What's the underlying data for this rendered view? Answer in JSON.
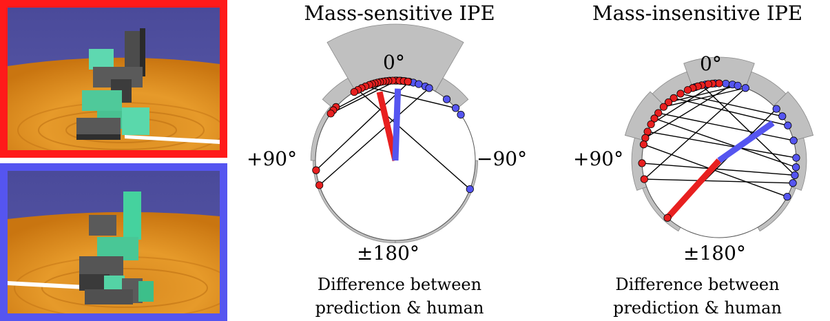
{
  "scenes": [
    {
      "name": "top-scene",
      "frame_color": "#ff1a1a"
    },
    {
      "name": "bottom-scene",
      "frame_color": "#5555f0"
    }
  ],
  "chart_data": [
    {
      "type": "polar_scatter",
      "title": "Mass-sensitive IPE",
      "angle_labels": {
        "top": "0°",
        "left": "+90°",
        "right": "−90°",
        "bottom": "±180°"
      },
      "caption_line1": "Difference between",
      "caption_line2": "prediction & human",
      "angle_convention": "degrees, 0 at top, positive to the left (counter-clockwise)",
      "histogram_sectors": [
        {
          "from": -30,
          "to": 30,
          "height": 1.0
        },
        {
          "from": 30,
          "to": 50,
          "height": 0.25
        },
        {
          "from": -50,
          "to": -30,
          "height": 0.25
        },
        {
          "from": 50,
          "to": 90,
          "height": 0.06
        },
        {
          "from": 90,
          "to": 180,
          "height": 0.02
        },
        {
          "from": -180,
          "to": -90,
          "height": 0.02
        }
      ],
      "mean_vectors": [
        {
          "series": "red",
          "angle": 13,
          "length": 0.88,
          "color": "#e82020"
        },
        {
          "series": "blue",
          "angle": -2,
          "length": 0.9,
          "color": "#5555f0"
        }
      ],
      "points": [
        {
          "angle": -1,
          "color": "blue"
        },
        {
          "angle": -4,
          "color": "blue"
        },
        {
          "angle": -7,
          "color": "blue"
        },
        {
          "angle": -10,
          "color": "blue"
        },
        {
          "angle": -13,
          "color": "blue"
        },
        {
          "angle": -17,
          "color": "blue"
        },
        {
          "angle": -22,
          "color": "blue"
        },
        {
          "angle": -25,
          "color": "blue"
        },
        {
          "angle": 4,
          "color": "blue"
        },
        {
          "angle": -40,
          "color": "blue"
        },
        {
          "angle": -49,
          "color": "blue"
        },
        {
          "angle": -55,
          "color": "blue"
        },
        {
          "angle": -111,
          "color": "blue"
        },
        {
          "angle": 0,
          "color": "red"
        },
        {
          "angle": 2,
          "color": "red"
        },
        {
          "angle": 5,
          "color": "red"
        },
        {
          "angle": 7,
          "color": "red"
        },
        {
          "angle": 9,
          "color": "red"
        },
        {
          "angle": 11,
          "color": "red"
        },
        {
          "angle": 13,
          "color": "red"
        },
        {
          "angle": 15,
          "color": "red"
        },
        {
          "angle": 17,
          "color": "red"
        },
        {
          "angle": 19,
          "color": "red"
        },
        {
          "angle": 22,
          "color": "red"
        },
        {
          "angle": 25,
          "color": "red"
        },
        {
          "angle": 28,
          "color": "red"
        },
        {
          "angle": 31,
          "color": "red"
        },
        {
          "angle": -3,
          "color": "red"
        },
        {
          "angle": -6,
          "color": "red"
        },
        {
          "angle": -9,
          "color": "red"
        },
        {
          "angle": 48,
          "color": "red"
        },
        {
          "angle": 51,
          "color": "red"
        },
        {
          "angle": 54,
          "color": "red"
        },
        {
          "angle": 97,
          "color": "red"
        },
        {
          "angle": 108,
          "color": "red"
        }
      ],
      "pairs": [
        [
          -111,
          28
        ],
        [
          54,
          -1
        ],
        [
          97,
          -10
        ],
        [
          108,
          -25
        ],
        [
          22,
          -49
        ],
        [
          17,
          -13
        ],
        [
          51,
          5
        ]
      ]
    },
    {
      "type": "polar_scatter",
      "title": "Mass-insensitive IPE",
      "angle_labels": {
        "top": "0°",
        "left": "+90°",
        "bottom": "±180°"
      },
      "caption_line1": "Difference between",
      "caption_line2": "prediction & human",
      "angle_convention": "degrees, 0 at top, positive to the left (counter-clockwise)",
      "histogram_sectors": [
        {
          "from": -20,
          "to": 20,
          "height": 0.5
        },
        {
          "from": 20,
          "to": 45,
          "height": 0.32
        },
        {
          "from": -45,
          "to": -20,
          "height": 0.32
        },
        {
          "from": 45,
          "to": 75,
          "height": 0.38
        },
        {
          "from": -75,
          "to": -45,
          "height": 0.38
        },
        {
          "from": 75,
          "to": 110,
          "height": 0.18
        },
        {
          "from": -110,
          "to": -75,
          "height": 0.18
        },
        {
          "from": 110,
          "to": 150,
          "height": 0.06
        },
        {
          "from": -150,
          "to": -110,
          "height": 0.06
        }
      ],
      "mean_vectors": [
        {
          "series": "red",
          "angle": 138,
          "length": 0.98,
          "color": "#e82020"
        },
        {
          "series": "blue",
          "angle": -55,
          "length": 0.85,
          "color": "#5555f0"
        }
      ],
      "points": [
        {
          "angle": -5,
          "color": "blue"
        },
        {
          "angle": -10,
          "color": "blue"
        },
        {
          "angle": -14,
          "color": "blue"
        },
        {
          "angle": -20,
          "color": "blue"
        },
        {
          "angle": 3,
          "color": "blue"
        },
        {
          "angle": 10,
          "color": "blue"
        },
        {
          "angle": 18,
          "color": "blue"
        },
        {
          "angle": -48,
          "color": "blue"
        },
        {
          "angle": -55,
          "color": "blue"
        },
        {
          "angle": -63,
          "color": "blue"
        },
        {
          "angle": -75,
          "color": "blue"
        },
        {
          "angle": -88,
          "color": "blue"
        },
        {
          "angle": -95,
          "color": "blue"
        },
        {
          "angle": -101,
          "color": "blue"
        },
        {
          "angle": -107,
          "color": "blue"
        },
        {
          "angle": -118,
          "color": "blue"
        },
        {
          "angle": 0,
          "color": "red"
        },
        {
          "angle": 5,
          "color": "red"
        },
        {
          "angle": 8,
          "color": "red"
        },
        {
          "angle": 13,
          "color": "red"
        },
        {
          "angle": 16,
          "color": "red"
        },
        {
          "angle": 20,
          "color": "red"
        },
        {
          "angle": 24,
          "color": "red"
        },
        {
          "angle": 30,
          "color": "red"
        },
        {
          "angle": 36,
          "color": "red"
        },
        {
          "angle": 41,
          "color": "red"
        },
        {
          "angle": 46,
          "color": "red"
        },
        {
          "angle": 52,
          "color": "red"
        },
        {
          "angle": 57,
          "color": "red"
        },
        {
          "angle": 62,
          "color": "red"
        },
        {
          "angle": 68,
          "color": "red"
        },
        {
          "angle": 73,
          "color": "red"
        },
        {
          "angle": 78,
          "color": "red"
        },
        {
          "angle": 92,
          "color": "red"
        },
        {
          "angle": 104,
          "color": "red"
        },
        {
          "angle": 138,
          "color": "red"
        }
      ],
      "pairs": [
        [
          138,
          -48
        ],
        [
          104,
          -107
        ],
        [
          92,
          -101
        ],
        [
          78,
          -118
        ],
        [
          73,
          -10
        ],
        [
          68,
          -88
        ],
        [
          62,
          3
        ],
        [
          57,
          -95
        ],
        [
          52,
          -75
        ],
        [
          46,
          -20
        ],
        [
          41,
          -14
        ],
        [
          36,
          -63
        ],
        [
          30,
          -55
        ],
        [
          24,
          18
        ],
        [
          20,
          -5
        ],
        [
          16,
          10
        ],
        [
          13,
          -101
        ],
        [
          104,
          -20
        ]
      ]
    }
  ]
}
